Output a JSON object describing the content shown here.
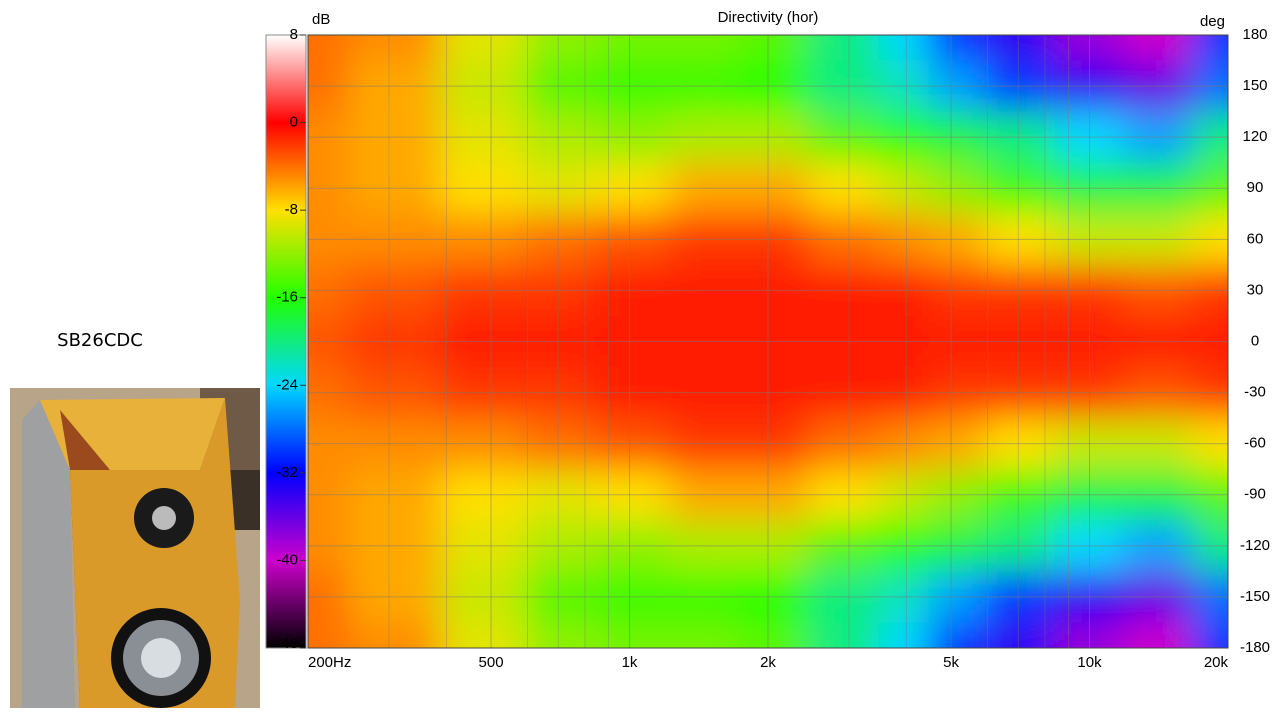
{
  "caption": "SB26CDC",
  "chart_data": {
    "type": "heatmap",
    "title": "Directivity (hor)",
    "colorbar_label": "dB",
    "y_label": "deg",
    "x_scale": "log",
    "x": [
      200,
      300,
      500,
      700,
      1000,
      1500,
      2000,
      3000,
      4000,
      5000,
      7000,
      10000,
      14000,
      20000
    ],
    "y": [
      180,
      150,
      120,
      90,
      60,
      30,
      0,
      -30,
      -60,
      -90,
      -120,
      -150,
      -180
    ],
    "z": [
      [
        -4,
        -5,
        -9,
        -12,
        -13,
        -13,
        -14,
        -20,
        -24,
        -30,
        -34,
        -38,
        -40,
        -30
      ],
      [
        -4,
        -6,
        -10,
        -14,
        -15,
        -15,
        -16,
        -20,
        -22,
        -26,
        -30,
        -34,
        -36,
        -28
      ],
      [
        -5,
        -6,
        -9,
        -11,
        -12,
        -11,
        -11,
        -14,
        -16,
        -18,
        -20,
        -24,
        -26,
        -20
      ],
      [
        -5,
        -6,
        -8,
        -9,
        -8,
        -6,
        -6,
        -8,
        -10,
        -12,
        -15,
        -18,
        -18,
        -14
      ],
      [
        -5,
        -5,
        -5,
        -4,
        -3,
        -2,
        -2,
        -4,
        -5,
        -6,
        -8,
        -10,
        -10,
        -8
      ],
      [
        -4,
        -3,
        -2,
        -2,
        -1,
        -1,
        -1,
        -1,
        -1,
        -2,
        -2,
        -2,
        -3,
        -2
      ],
      [
        -3,
        -2,
        -1,
        -1,
        -1,
        -1,
        -1,
        -1,
        -1,
        -1,
        -1,
        -1,
        -1,
        -1
      ],
      [
        -4,
        -3,
        -2,
        -2,
        -1,
        -1,
        -1,
        -1,
        -1,
        -2,
        -2,
        -2,
        -3,
        -2
      ],
      [
        -5,
        -5,
        -5,
        -4,
        -3,
        -2,
        -2,
        -4,
        -5,
        -6,
        -8,
        -10,
        -10,
        -8
      ],
      [
        -5,
        -6,
        -8,
        -9,
        -8,
        -6,
        -6,
        -8,
        -10,
        -12,
        -15,
        -18,
        -18,
        -14
      ],
      [
        -5,
        -6,
        -9,
        -11,
        -12,
        -11,
        -11,
        -14,
        -16,
        -18,
        -20,
        -24,
        -26,
        -20
      ],
      [
        -4,
        -6,
        -10,
        -14,
        -15,
        -15,
        -16,
        -20,
        -22,
        -26,
        -30,
        -34,
        -36,
        -28
      ],
      [
        -4,
        -5,
        -9,
        -12,
        -13,
        -13,
        -14,
        -20,
        -24,
        -30,
        -34,
        -38,
        -40,
        -30
      ]
    ],
    "xlim": [
      200,
      20000
    ],
    "xticks": [
      {
        "value": 200,
        "label": "200Hz"
      },
      500,
      {
        "value": 1000,
        "label": "1k"
      },
      {
        "value": 2000,
        "label": "2k"
      },
      {
        "value": 5000,
        "label": "5k"
      },
      {
        "value": 10000,
        "label": "10k"
      },
      {
        "value": 20000,
        "label": "20k"
      }
    ],
    "xminorticks": [
      300,
      400,
      600,
      700,
      800,
      900,
      3000,
      4000,
      6000,
      7000,
      8000,
      9000
    ],
    "ylim": [
      -180,
      180
    ],
    "yticks": [
      180,
      150,
      120,
      90,
      60,
      30,
      0,
      -30,
      -60,
      -90,
      -120,
      -150,
      -180
    ],
    "clim": [
      -48,
      8
    ],
    "cticks": [
      8,
      0,
      -8,
      -16,
      -24,
      -32,
      -40,
      -48
    ],
    "colormap": [
      "#000000",
      "#cc00cc",
      "#0000ff",
      "#00d8ff",
      "#22ff00",
      "#ffe000",
      "#ff0000",
      "#ffffff"
    ],
    "grid": true
  }
}
